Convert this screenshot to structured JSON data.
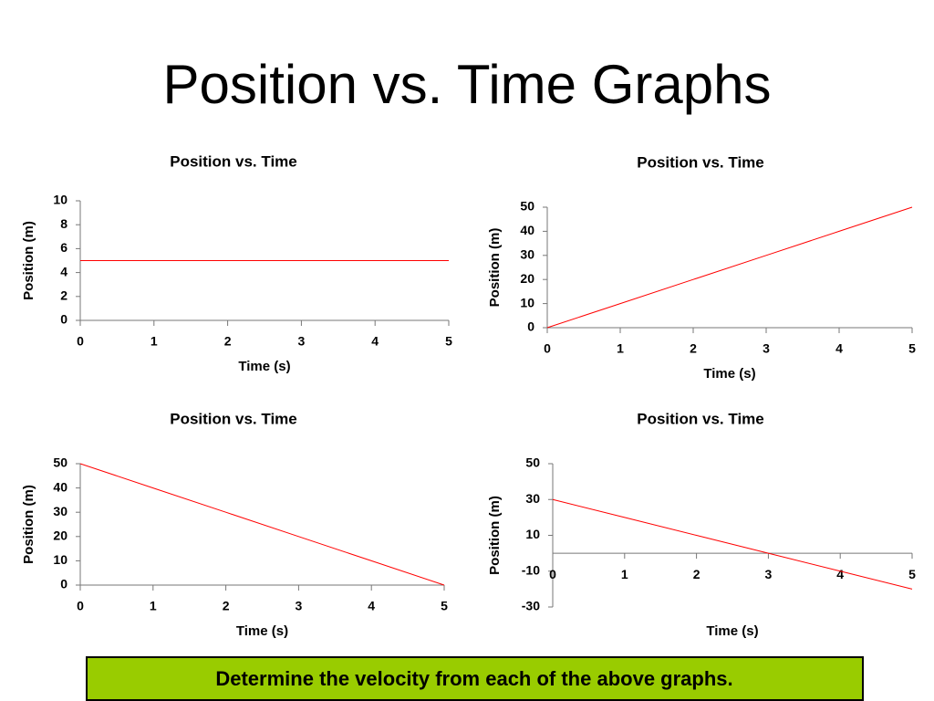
{
  "title": "Position vs. Time Graphs",
  "note": "Determine the velocity from each of the above graphs.",
  "chart_data": [
    {
      "type": "line",
      "title": "Position vs. Time",
      "x_label": "Time (s)",
      "y_label": "Position (m)",
      "x": [
        0,
        1,
        2,
        3,
        4,
        5
      ],
      "values": [
        5,
        5,
        5,
        5,
        5,
        5
      ],
      "color": "#ff0000",
      "xlim": [
        0,
        5
      ],
      "xticks": [
        0,
        1,
        2,
        3,
        4,
        5
      ],
      "ylim": [
        0,
        10
      ],
      "yticks": [
        0,
        2,
        4,
        6,
        8,
        10
      ]
    },
    {
      "type": "line",
      "title": "Position vs. Time",
      "x_label": "Time (s)",
      "y_label": "Position (m)",
      "x": [
        0,
        1,
        2,
        3,
        4,
        5
      ],
      "values": [
        0,
        10,
        20,
        30,
        40,
        50
      ],
      "color": "#ff0000",
      "xlim": [
        0,
        5
      ],
      "xticks": [
        0,
        1,
        2,
        3,
        4,
        5
      ],
      "ylim": [
        0,
        50
      ],
      "yticks": [
        0,
        10,
        20,
        30,
        40,
        50
      ]
    },
    {
      "type": "line",
      "title": "Position vs. Time",
      "x_label": "Time (s)",
      "y_label": "Position (m)",
      "x": [
        0,
        1,
        2,
        3,
        4,
        5
      ],
      "values": [
        50,
        40,
        30,
        20,
        10,
        0
      ],
      "color": "#ff0000",
      "xlim": [
        0,
        5
      ],
      "xticks": [
        0,
        1,
        2,
        3,
        4,
        5
      ],
      "ylim": [
        0,
        50
      ],
      "yticks": [
        0,
        10,
        20,
        30,
        40,
        50
      ]
    },
    {
      "type": "line",
      "title": "Position vs. Time",
      "x_label": "Time (s)",
      "y_label": "Position (m)",
      "x": [
        0,
        1,
        2,
        3,
        4,
        5
      ],
      "values": [
        30,
        20,
        10,
        0,
        -10,
        -20
      ],
      "color": "#ff0000",
      "xlim": [
        0,
        5
      ],
      "xticks": [
        0,
        1,
        2,
        3,
        4,
        5
      ],
      "ylim": [
        -30,
        50
      ],
      "yticks": [
        -30,
        -10,
        10,
        30,
        50
      ]
    }
  ]
}
